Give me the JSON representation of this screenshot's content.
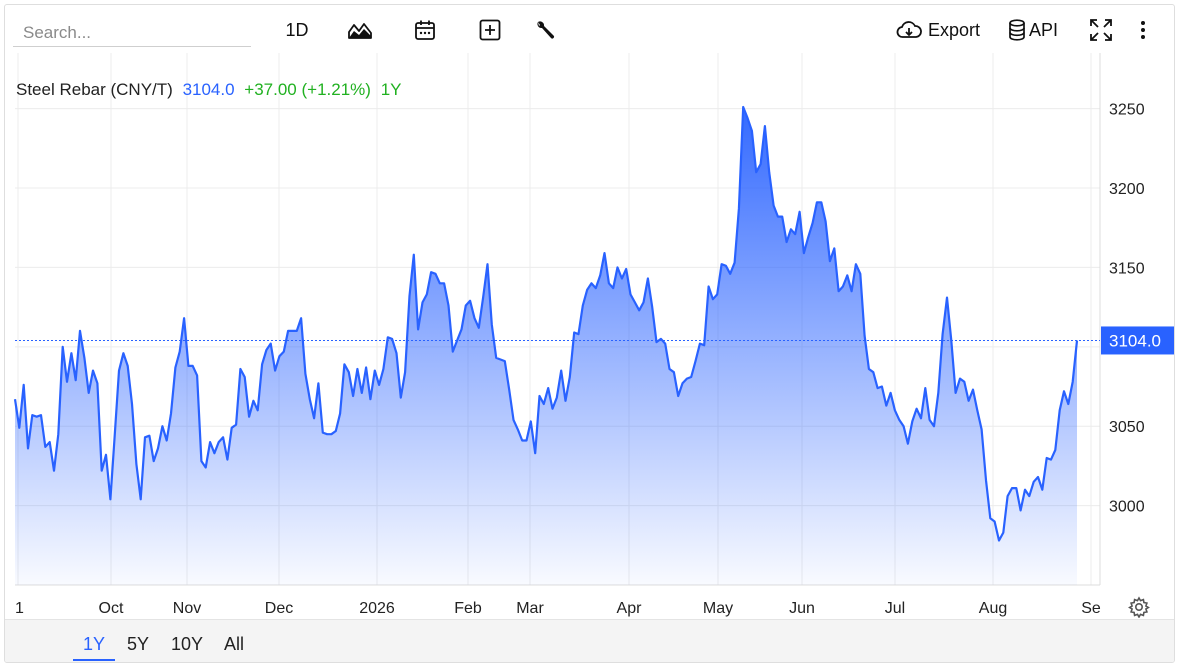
{
  "toolbar": {
    "search_placeholder": "Search...",
    "interval_label": "1D",
    "export_label": "Export",
    "api_label": "API"
  },
  "legend": {
    "name": "Steel Rebar (CNY/T)",
    "price": "3104.0",
    "change": "+37.00 (+1.21%)",
    "period": "1Y"
  },
  "range_buttons": [
    "1Y",
    "5Y",
    "10Y",
    "All"
  ],
  "active_range": "1Y",
  "colors": {
    "line": "#2962ff",
    "up": "#21b121",
    "badge": "#2962ff"
  },
  "chart_data": {
    "type": "area",
    "series": [
      {
        "values": [
          3067,
          3049,
          3076,
          3036,
          3057,
          3056,
          3057,
          3037,
          3040,
          3022,
          3045,
          3100,
          3078,
          3096,
          3079,
          3110,
          3093,
          3071,
          3085,
          3077,
          3022,
          3032,
          3004,
          3044,
          3085,
          3096,
          3088,
          3064,
          3026,
          3004,
          3043,
          3044,
          3028,
          3036,
          3050,
          3041,
          3058,
          3087,
          3097,
          3118,
          3088,
          3088,
          3082,
          3028,
          3024,
          3040,
          3033,
          3040,
          3043,
          3029,
          3049,
          3051,
          3086,
          3081,
          3056,
          3066,
          3060,
          3089,
          3098,
          3102,
          3085,
          3094,
          3097,
          3110,
          3110,
          3110,
          3118,
          3083,
          3067,
          3055,
          3077,
          3046,
          3045,
          3045,
          3047,
          3058,
          3089,
          3084,
          3069,
          3086,
          3071,
          3087,
          3067,
          3085,
          3076,
          3086,
          3106,
          3105,
          3096,
          3068,
          3084,
          3132,
          3158,
          3111,
          3128,
          3133,
          3147,
          3146,
          3140,
          3140,
          3126,
          3097,
          3104,
          3111,
          3126,
          3129,
          3118,
          3112,
          3131,
          3152,
          3114,
          3093,
          3092,
          3091,
          3073,
          3054,
          3048,
          3041,
          3041,
          3053,
          3033,
          3069,
          3064,
          3074,
          3061,
          3068,
          3085,
          3066,
          3081,
          3109,
          3108,
          3126,
          3136,
          3140,
          3137,
          3145,
          3159,
          3140,
          3137,
          3150,
          3143,
          3149,
          3133,
          3128,
          3123,
          3128,
          3143,
          3125,
          3103,
          3105,
          3102,
          3086,
          3084,
          3069,
          3077,
          3080,
          3081,
          3091,
          3102,
          3101,
          3138,
          3130,
          3133,
          3152,
          3151,
          3146,
          3153,
          3187,
          3251,
          3244,
          3236,
          3210,
          3215,
          3239,
          3210,
          3189,
          3182,
          3182,
          3166,
          3174,
          3171,
          3185,
          3159,
          3169,
          3178,
          3191,
          3191,
          3179,
          3154,
          3162,
          3135,
          3138,
          3145,
          3135,
          3152,
          3146,
          3107,
          3086,
          3084,
          3074,
          3075,
          3063,
          3071,
          3060,
          3054,
          3050,
          3039,
          3053,
          3061,
          3055,
          3074,
          3054,
          3050,
          3071,
          3108,
          3131,
          3104,
          3071,
          3080,
          3078,
          3066,
          3073,
          3060,
          3048,
          3016,
          2992,
          2990,
          2978,
          2983,
          3006,
          3011,
          3011,
          2997,
          3010,
          3006,
          3015,
          3018,
          3010,
          3030,
          3029,
          3035,
          3060,
          3072,
          3064,
          3078,
          3104
        ]
      }
    ],
    "x_tick_labels": [
      "1",
      "Oct",
      "Nov",
      "Dec",
      "2026",
      "Feb",
      "Mar",
      "Apr",
      "May",
      "Jun",
      "Jul",
      "Aug",
      "Se"
    ],
    "y_tick_labels": [
      "3000",
      "3050",
      "3100",
      "3150",
      "3200",
      "3250"
    ],
    "y_ticks": [
      3000,
      3050,
      3100,
      3150,
      3200,
      3250
    ],
    "ylim": [
      2950,
      3280
    ],
    "last_value": 3104.0,
    "last_value_label": "3104.0",
    "grid": "horizontal and vertical",
    "legend_position": "top-left"
  }
}
